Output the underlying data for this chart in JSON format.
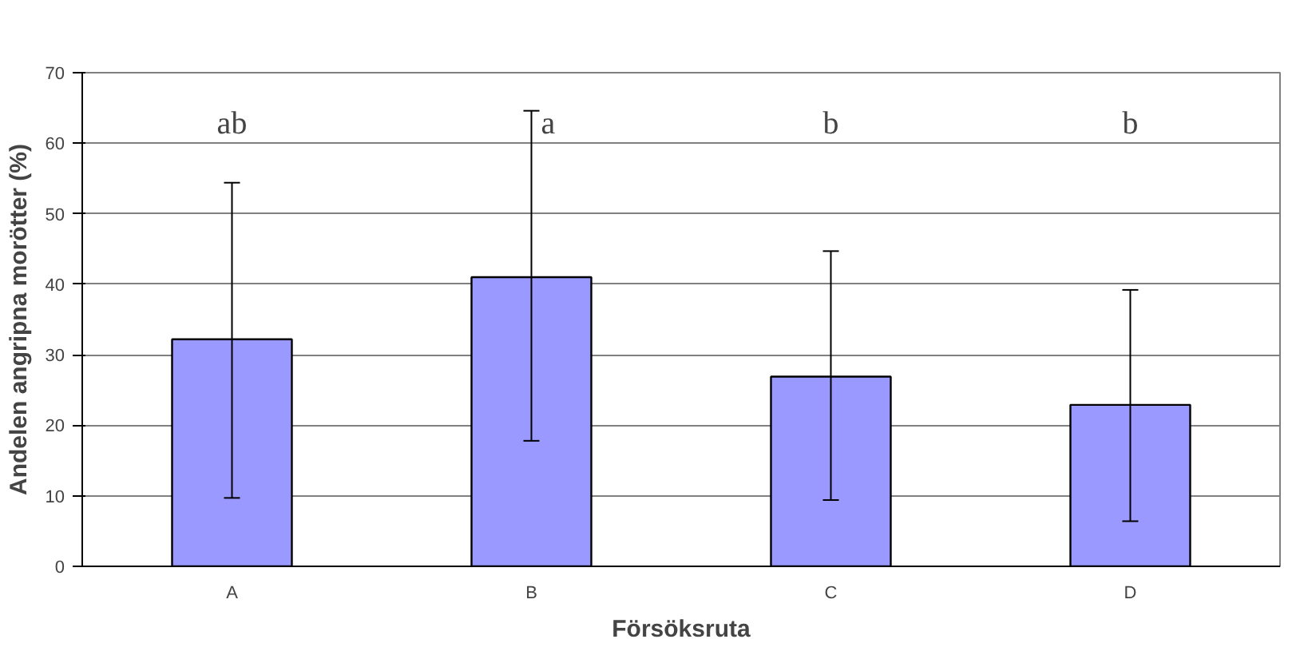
{
  "chart_data": {
    "type": "bar",
    "xlabel": "Försöksruta",
    "ylabel": "Andelen angripna morötter (%)",
    "categories": [
      "A",
      "B",
      "C",
      "D"
    ],
    "values": [
      32.2,
      41.0,
      26.9,
      22.9
    ],
    "errors": [
      [
        9.7,
        54.4
      ],
      [
        17.8,
        64.6
      ],
      [
        9.4,
        44.7
      ],
      [
        6.4,
        39.2
      ]
    ],
    "color": "#9999ff",
    "ylim": [
      0,
      70
    ],
    "yticks": [
      0,
      10,
      20,
      30,
      40,
      50,
      60,
      70
    ],
    "grid": "y",
    "annotations": [
      "ab",
      "a",
      "b",
      "b"
    ]
  }
}
